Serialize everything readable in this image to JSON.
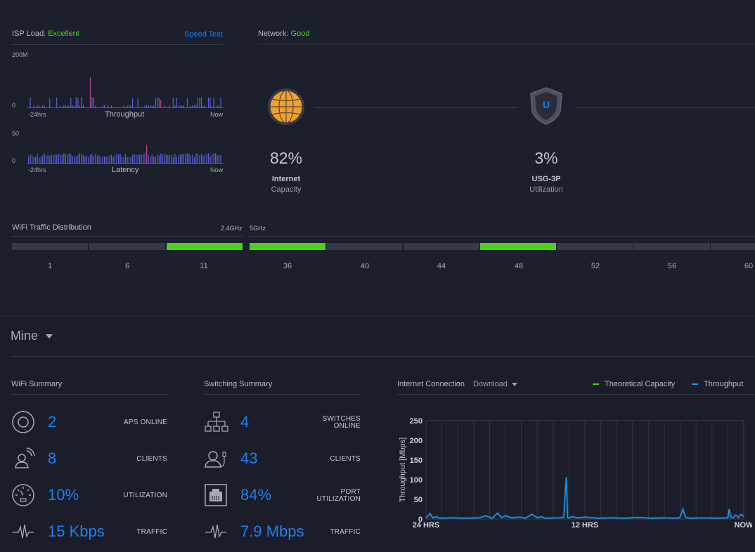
{
  "isp": {
    "label": "ISP Load:",
    "status": "Excellent",
    "speed_test": "Speed Test",
    "throughput": {
      "ymax": "200M",
      "ymin": "0",
      "x_start": "-24hrs",
      "x_end": "Now",
      "title": "Throughput"
    },
    "latency": {
      "ymax": "50",
      "ymin": "0",
      "x_start": "-24hrs",
      "x_end": "Now",
      "title": "Latency"
    }
  },
  "network": {
    "label": "Network:",
    "status": "Good",
    "internet": {
      "pct": "82%",
      "name": "Internet",
      "sub": "Capacity"
    },
    "gateway": {
      "pct": "3%",
      "name": "USG-3P",
      "sub": "Utilization"
    }
  },
  "wifi_dist": {
    "title": "WiFi Traffic Distribution",
    "band_24": "2.4GHz",
    "band_5": "5GHz",
    "channels_24": [
      "1",
      "6",
      "11"
    ],
    "channels_5": [
      "36",
      "40",
      "44",
      "48",
      "52",
      "56",
      "60"
    ],
    "active_24": [
      false,
      false,
      true
    ],
    "active_5": [
      true,
      false,
      false,
      true,
      false,
      false,
      false
    ]
  },
  "dashboard": {
    "name": "Mine"
  },
  "wifi_summary": {
    "title": "WiFi Summary",
    "rows": [
      {
        "value": "2",
        "label": "APS ONLINE",
        "icon": "access-point-icon"
      },
      {
        "value": "8",
        "label": "CLIENTS",
        "icon": "wireless-client-icon"
      },
      {
        "value": "10%",
        "label": "UTILIZATION",
        "icon": "gauge-icon"
      },
      {
        "value": "15 Kbps",
        "label": "TRAFFIC",
        "icon": "traffic-wave-icon"
      }
    ]
  },
  "switching_summary": {
    "title": "Switching Summary",
    "rows": [
      {
        "value": "4",
        "label_1": "SWITCHES",
        "label_2": "ONLINE",
        "icon": "switch-topology-icon"
      },
      {
        "value": "43",
        "label_1": "CLIENTS",
        "label_2": "",
        "icon": "wired-client-icon"
      },
      {
        "value": "84%",
        "label_1": "PORT",
        "label_2": "UTILIZATION",
        "icon": "ethernet-port-icon"
      },
      {
        "value": "7.9 Mbps",
        "label_1": "TRAFFIC",
        "label_2": "",
        "icon": "traffic-wave-icon"
      }
    ]
  },
  "internet_connection": {
    "title": "Internet Connection",
    "mode": "Download",
    "legend": [
      {
        "name": "Theoretical Capacity",
        "color": "#49d41a"
      },
      {
        "name": "Throughput",
        "color": "#1e9bf2"
      }
    ]
  },
  "colors": {
    "accent_blue": "#1e7ff2",
    "good_green": "#49d41a",
    "background": "#1c1f2c",
    "globe_orange": "#f0a030"
  },
  "chart_data": {
    "type": "line",
    "ylabel": "Throughput [Mbps]",
    "ylim": [
      0,
      250
    ],
    "yticks": [
      "250",
      "200",
      "150",
      "100",
      "50",
      "0"
    ],
    "xticks": [
      "24 HRS",
      "12 HRS",
      "NOW"
    ],
    "series": [
      {
        "name": "Throughput",
        "x_hours_ago": [
          24,
          23.7,
          23.5,
          23.2,
          23,
          22,
          21,
          20,
          19.5,
          19,
          18.6,
          18.3,
          18,
          17.5,
          17,
          16.5,
          16,
          15.6,
          15.3,
          15,
          14,
          13.6,
          13.4,
          13.3,
          13.2,
          13,
          12.5,
          12,
          11,
          10,
          9,
          8,
          7,
          6,
          5,
          4.8,
          4.6,
          4.4,
          4,
          3,
          2,
          1.2,
          1.1,
          1.0,
          0.8,
          0.6,
          0.4,
          0.2,
          0
        ],
        "values": [
          2,
          14,
          3,
          6,
          2,
          3,
          2,
          3,
          8,
          2,
          15,
          4,
          8,
          3,
          5,
          2,
          12,
          3,
          6,
          2,
          3,
          4,
          106,
          4,
          2,
          6,
          3,
          5,
          2,
          3,
          2,
          4,
          2,
          3,
          2,
          5,
          25,
          4,
          2,
          3,
          2,
          3,
          25,
          6,
          3,
          10,
          4,
          12,
          6
        ]
      }
    ]
  }
}
